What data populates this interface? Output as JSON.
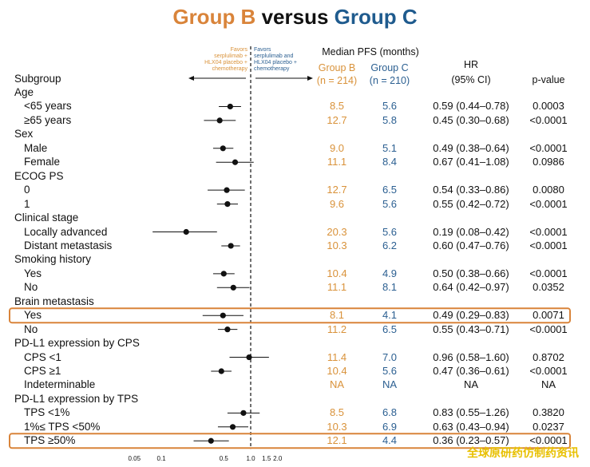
{
  "title": {
    "group_b": "Group B",
    "versus": "versus",
    "group_c": "Group C"
  },
  "headers": {
    "subgroup": "Subgroup",
    "median_pfs": "Median PFS (months)",
    "group_b_label": "Group B",
    "group_b_n": "(n = 214)",
    "group_c_label": "Group C",
    "group_c_n": "(n = 210)",
    "hr_line1": "HR",
    "hr_line2": "(95% CI)",
    "pvalue": "p-value"
  },
  "favors": {
    "left": [
      "Favors",
      "serplulimab +",
      "HLX04 placebo +",
      "chemotherapy"
    ],
    "right": [
      "Favors",
      "serplulimab and",
      "HLX04 placebo +",
      "chemotherapy"
    ]
  },
  "colors": {
    "group_b": "#d9923a",
    "group_c": "#2b5f91",
    "highlight": "#d9843a"
  },
  "watermark": "全球原研药仿制药资讯",
  "chart_data": {
    "type": "forest",
    "x_scale": "log",
    "reference_line": 1.0,
    "xlim": [
      0.05,
      2.0
    ],
    "x_ticks": [
      {
        "value": 0.05,
        "label": "0.05"
      },
      {
        "value": 0.1,
        "label": "0.1"
      },
      {
        "value": 0.5,
        "label": "0.5"
      },
      {
        "value": 1.0,
        "label": "1.0"
      },
      {
        "value": 1.5,
        "label": "1.5"
      },
      {
        "value": 2.0,
        "label": "2.0"
      }
    ],
    "rows": [
      {
        "kind": "category",
        "label": "Age"
      },
      {
        "kind": "subgroup",
        "label": "<65 years",
        "group_b": "8.5",
        "group_c": "5.6",
        "hr": 0.59,
        "lo": 0.44,
        "hi": 0.78,
        "hr_text": "0.59 (0.44–0.78)",
        "p": "0.0003"
      },
      {
        "kind": "subgroup",
        "label": "≥65 years",
        "group_b": "12.7",
        "group_c": "5.8",
        "hr": 0.45,
        "lo": 0.3,
        "hi": 0.68,
        "hr_text": "0.45 (0.30–0.68)",
        "p": "<0.0001"
      },
      {
        "kind": "category",
        "label": "Sex"
      },
      {
        "kind": "subgroup",
        "label": "Male",
        "group_b": "9.0",
        "group_c": "5.1",
        "hr": 0.49,
        "lo": 0.38,
        "hi": 0.64,
        "hr_text": "0.49 (0.38–0.64)",
        "p": "<0.0001"
      },
      {
        "kind": "subgroup",
        "label": "Female",
        "group_b": "11.1",
        "group_c": "8.4",
        "hr": 0.67,
        "lo": 0.41,
        "hi": 1.08,
        "hr_text": "0.67 (0.41–1.08)",
        "p": "0.0986"
      },
      {
        "kind": "category",
        "label": "ECOG PS"
      },
      {
        "kind": "subgroup",
        "label": "0",
        "group_b": "12.7",
        "group_c": "6.5",
        "hr": 0.54,
        "lo": 0.33,
        "hi": 0.86,
        "hr_text": "0.54 (0.33–0.86)",
        "p": "0.0080"
      },
      {
        "kind": "subgroup",
        "label": "1",
        "group_b": "9.6",
        "group_c": "5.6",
        "hr": 0.55,
        "lo": 0.42,
        "hi": 0.72,
        "hr_text": "0.55 (0.42–0.72)",
        "p": "<0.0001"
      },
      {
        "kind": "category",
        "label": "Clinical stage"
      },
      {
        "kind": "subgroup",
        "label": "Locally advanced",
        "group_b": "20.3",
        "group_c": "5.6",
        "hr": 0.19,
        "lo": 0.08,
        "hi": 0.42,
        "hr_text": "0.19 (0.08–0.42)",
        "p": "<0.0001"
      },
      {
        "kind": "subgroup",
        "label": "Distant metastasis",
        "group_b": "10.3",
        "group_c": "6.2",
        "hr": 0.6,
        "lo": 0.47,
        "hi": 0.76,
        "hr_text": "0.60 (0.47–0.76)",
        "p": "<0.0001"
      },
      {
        "kind": "category",
        "label": "Smoking history"
      },
      {
        "kind": "subgroup",
        "label": "Yes",
        "group_b": "10.4",
        "group_c": "4.9",
        "hr": 0.5,
        "lo": 0.38,
        "hi": 0.66,
        "hr_text": "0.50 (0.38–0.66)",
        "p": "<0.0001"
      },
      {
        "kind": "subgroup",
        "label": "No",
        "group_b": "11.1",
        "group_c": "8.1",
        "hr": 0.64,
        "lo": 0.42,
        "hi": 0.97,
        "hr_text": "0.64 (0.42–0.97)",
        "p": "0.0352"
      },
      {
        "kind": "category",
        "label": "Brain metastasis"
      },
      {
        "kind": "subgroup",
        "label": "Yes",
        "group_b": "8.1",
        "group_c": "4.1",
        "hr": 0.49,
        "lo": 0.29,
        "hi": 0.83,
        "hr_text": "0.49 (0.29–0.83)",
        "p": "0.0071",
        "highlight": true
      },
      {
        "kind": "subgroup",
        "label": "No",
        "group_b": "11.2",
        "group_c": "6.5",
        "hr": 0.55,
        "lo": 0.43,
        "hi": 0.71,
        "hr_text": "0.55 (0.43–0.71)",
        "p": "<0.0001"
      },
      {
        "kind": "category",
        "label": "PD-L1 expression by CPS"
      },
      {
        "kind": "subgroup",
        "label": "CPS <1",
        "group_b": "11.4",
        "group_c": "7.0",
        "hr": 0.96,
        "lo": 0.58,
        "hi": 1.6,
        "hr_text": "0.96 (0.58–1.60)",
        "p": "0.8702"
      },
      {
        "kind": "subgroup",
        "label": "CPS ≥1",
        "group_b": "10.4",
        "group_c": "5.6",
        "hr": 0.47,
        "lo": 0.36,
        "hi": 0.61,
        "hr_text": "0.47 (0.36–0.61)",
        "p": "<0.0001"
      },
      {
        "kind": "subgroup",
        "label": "Indeterminable",
        "group_b": "NA",
        "group_c": "NA",
        "hr": null,
        "lo": null,
        "hi": null,
        "hr_text": "NA",
        "p": "NA"
      },
      {
        "kind": "category",
        "label": "PD-L1 expression by TPS"
      },
      {
        "kind": "subgroup",
        "label": "TPS <1%",
        "group_b": "8.5",
        "group_c": "6.8",
        "hr": 0.83,
        "lo": 0.55,
        "hi": 1.26,
        "hr_text": "0.83 (0.55–1.26)",
        "p": "0.3820"
      },
      {
        "kind": "subgroup",
        "label": "1%≤ TPS <50%",
        "group_b": "10.3",
        "group_c": "6.9",
        "hr": 0.63,
        "lo": 0.43,
        "hi": 0.94,
        "hr_text": "0.63 (0.43–0.94)",
        "p": "0.0237"
      },
      {
        "kind": "subgroup",
        "label": "TPS ≥50%",
        "group_b": "12.1",
        "group_c": "4.4",
        "hr": 0.36,
        "lo": 0.23,
        "hi": 0.57,
        "hr_text": "0.36 (0.23–0.57)",
        "p": "<0.0001",
        "highlight": true
      }
    ]
  }
}
